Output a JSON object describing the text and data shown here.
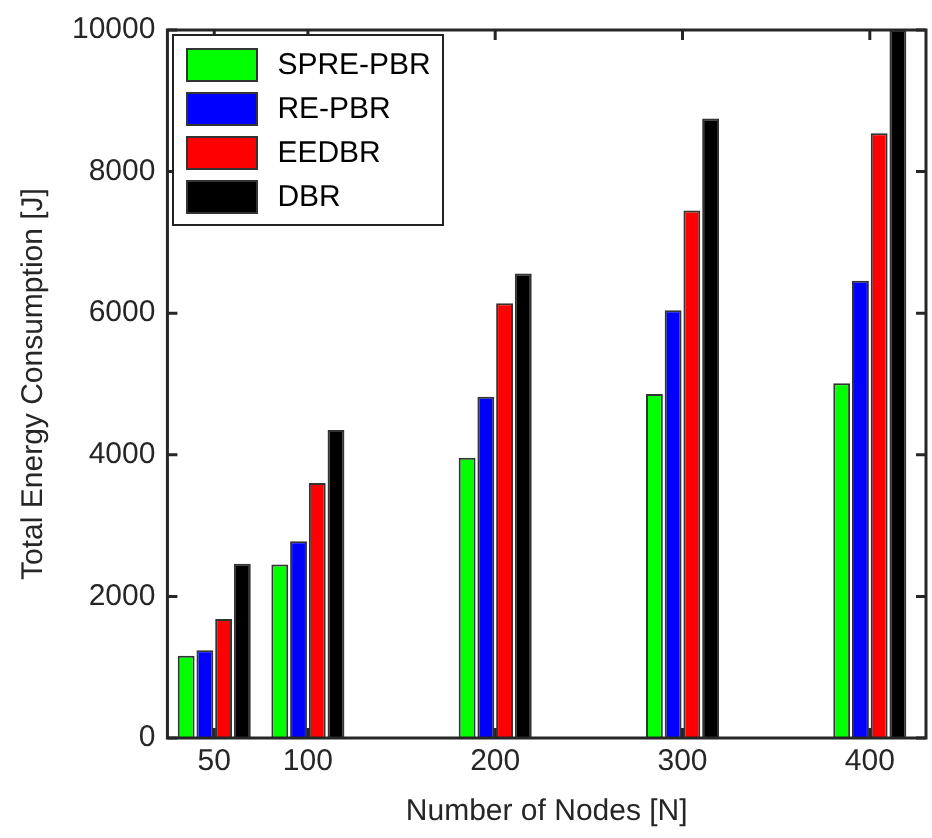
{
  "chart_data": {
    "type": "bar",
    "xlabel": "Number of Nodes [N]",
    "ylabel": "Total Energy Consumption [J]",
    "x": [
      50,
      100,
      200,
      300,
      400
    ],
    "series": [
      {
        "name": "SPRE-PBR",
        "color": "#00ff00",
        "values": [
          1160,
          2450,
          3960,
          4860,
          5010
        ]
      },
      {
        "name": "RE-PBR",
        "color": "#0000ff",
        "values": [
          1240,
          2780,
          4820,
          6040,
          6460
        ]
      },
      {
        "name": "EEDBR",
        "color": "#ff0000",
        "values": [
          1680,
          3600,
          6140,
          7450,
          8540
        ]
      },
      {
        "name": "DBR",
        "color": "#000000",
        "values": [
          2460,
          4350,
          6560,
          8750,
          10000
        ]
      }
    ],
    "xlim": [
      25,
      430
    ],
    "xticks": [
      50,
      100,
      200,
      300,
      400
    ],
    "ylim": [
      0,
      10000
    ],
    "yticks": [
      0,
      2000,
      4000,
      6000,
      8000,
      10000
    ],
    "grid": false,
    "legend": "top left"
  }
}
